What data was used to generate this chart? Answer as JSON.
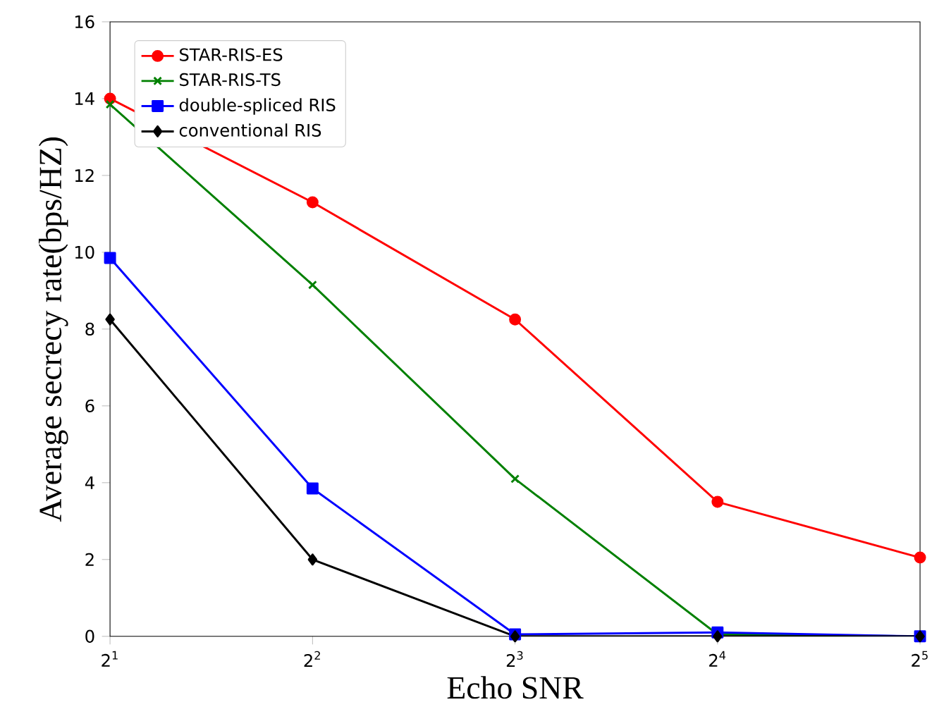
{
  "chart_data": {
    "type": "line",
    "xlabel": "Echo SNR",
    "ylabel": "Average secrecy rate(bps/HZ)",
    "log": "x",
    "x": [
      2,
      4,
      8,
      16,
      32
    ],
    "xlim": [
      2,
      32
    ],
    "ylim": [
      0,
      16
    ],
    "xticks": [
      {
        "value": 2,
        "label": "2$^{1}$"
      },
      {
        "value": 4,
        "label": "2$^{2}$"
      },
      {
        "value": 8,
        "label": "2$^{3}$"
      },
      {
        "value": 16,
        "label": "2$^{4}$"
      },
      {
        "value": 32,
        "label": "2$^{5}$"
      }
    ],
    "yticks": [
      0,
      2,
      4,
      6,
      8,
      10,
      12,
      14,
      16
    ],
    "legend": "top left",
    "line_style": "solid",
    "series": [
      {
        "name": "STAR-RIS-ES",
        "color": "#ff0000",
        "marker": "circle",
        "values": [
          14.0,
          11.3,
          8.25,
          3.5,
          2.05
        ]
      },
      {
        "name": "STAR-RIS-TS",
        "color": "#008000",
        "marker": "cross",
        "values": [
          13.85,
          9.15,
          4.1,
          0.05,
          0.0
        ]
      },
      {
        "name": "double-spliced RIS",
        "color": "#0000ff",
        "marker": "square",
        "values": [
          9.85,
          3.85,
          0.05,
          0.1,
          0.0
        ]
      },
      {
        "name": "conventional RIS",
        "color": "#000000",
        "marker": "diamond",
        "values": [
          8.25,
          2.0,
          0.0,
          0.0,
          0.0
        ]
      }
    ]
  }
}
